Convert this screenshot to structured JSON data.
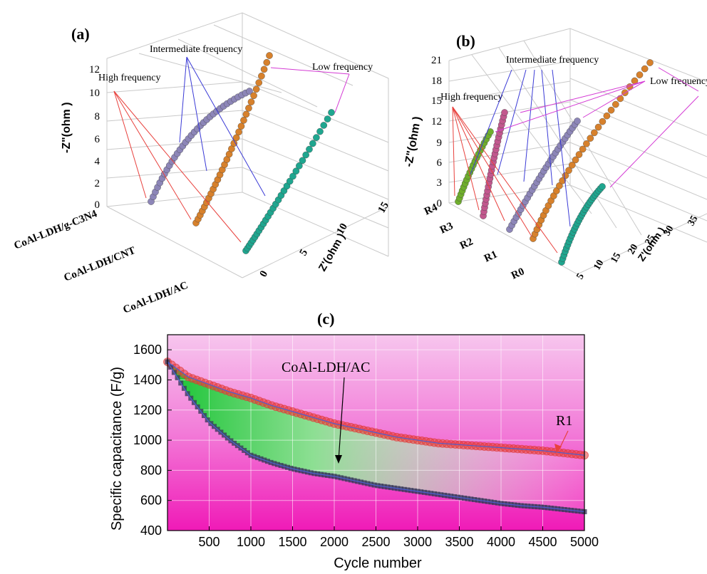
{
  "panels": {
    "a": {
      "label": "(a)",
      "yaxis_title": "-Z\"(ohm )",
      "xaxis_title": "Z'(ohm )",
      "y_ticks": [
        "0",
        "2",
        "4",
        "6",
        "8",
        "10",
        "12"
      ],
      "x_ticks": [
        "0",
        "5",
        "10",
        "15"
      ],
      "categories": [
        "CoAl-LDH/g-C3N4",
        "CoAl-LDH/CNT",
        "CoAl-LDH/AC"
      ],
      "annotations": {
        "high": "High frequency",
        "intermediate": "Intermediate frequency",
        "low": "Low frequency"
      },
      "colors": {
        "CoAl-LDH/g-C3N4": "#8d86b8",
        "CoAl-LDH/CNT": "#d7812c",
        "CoAl-LDH/AC": "#1fa68f"
      }
    },
    "b": {
      "label": "(b)",
      "yaxis_title": "-Z\"(ohm )",
      "xaxis_title": "Z'(ohm )",
      "y_ticks": [
        "0",
        "3",
        "6",
        "9",
        "12",
        "15",
        "18",
        "21"
      ],
      "x_ticks": [
        "5",
        "10",
        "15",
        "20",
        "25",
        "30",
        "35"
      ],
      "categories": [
        "R4",
        "R3",
        "R2",
        "R1",
        "R0"
      ],
      "annotations": {
        "high": "High frequency",
        "intermediate": "Intermediate frequency",
        "low": "Low frequency"
      },
      "colors": {
        "R4": "#6fae2c",
        "R3": "#c2588e",
        "R2": "#8d86b8",
        "R1": "#d7812c",
        "R0": "#1fa68f"
      }
    }
  },
  "chart_data": {
    "type": "scatter",
    "label": "(c)",
    "xlabel": "Cycle number",
    "ylabel": "Specific capacitance (F/g)",
    "xlim": [
      0,
      5000
    ],
    "ylim": [
      400,
      1700
    ],
    "x_ticks": [
      500,
      1000,
      1500,
      2000,
      2500,
      3000,
      3500,
      4000,
      4500,
      5000
    ],
    "y_ticks": [
      400,
      600,
      800,
      1000,
      1200,
      1400,
      1600
    ],
    "annotations": [
      "CoAl-LDH/AC",
      "R1"
    ],
    "series": [
      {
        "name": "R1",
        "color": "#e8413d",
        "x": [
          0,
          250,
          500,
          750,
          1000,
          1250,
          1500,
          1750,
          2000,
          2250,
          2500,
          2750,
          3000,
          3250,
          3500,
          3750,
          4000,
          4250,
          4500,
          4750,
          5000
        ],
        "y": [
          1520,
          1420,
          1370,
          1320,
          1280,
          1230,
          1190,
          1150,
          1110,
          1080,
          1050,
          1020,
          1000,
          980,
          970,
          960,
          950,
          940,
          930,
          915,
          900
        ]
      },
      {
        "name": "CoAl-LDH/AC",
        "color": "#3b3b5c",
        "x": [
          0,
          250,
          500,
          750,
          1000,
          1250,
          1500,
          1750,
          2000,
          2250,
          2500,
          2750,
          3000,
          3250,
          3500,
          3750,
          4000,
          4250,
          4500,
          4750,
          5000
        ],
        "y": [
          1520,
          1300,
          1120,
          1000,
          900,
          850,
          810,
          780,
          760,
          730,
          700,
          680,
          660,
          640,
          620,
          600,
          580,
          565,
          555,
          540,
          525
        ]
      }
    ]
  }
}
